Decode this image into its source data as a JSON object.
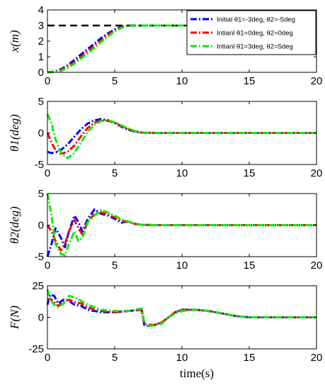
{
  "chart_data": [
    {
      "type": "line",
      "ylabel": "x(m)",
      "xlabel": "",
      "xlim": [
        0,
        20
      ],
      "ylim": [
        0,
        4
      ],
      "xticks": [
        "0",
        "5",
        "10",
        "15",
        "20"
      ],
      "yticks": [
        "0",
        "1",
        "2",
        "3",
        "4"
      ],
      "grid": false,
      "legend": "top-right",
      "reference_line": {
        "y": 3,
        "color": "#000000",
        "style": "dashed"
      },
      "series": [
        {
          "name": "Initial θ1=-3deg, θ2=-5deg",
          "color": "#0000ff",
          "style": "dashdot",
          "x": [
            0,
            0.5,
            1,
            1.5,
            2,
            2.5,
            3,
            3.5,
            4,
            4.5,
            5,
            5.5,
            6,
            7,
            8,
            9,
            10,
            12,
            15,
            18,
            20
          ],
          "y": [
            0,
            0.05,
            0.2,
            0.45,
            0.8,
            1.15,
            1.5,
            1.85,
            2.2,
            2.5,
            2.75,
            2.92,
            3.0,
            3.0,
            3.0,
            3.0,
            3.0,
            3.0,
            3.0,
            3.0,
            3.0
          ]
        },
        {
          "name": "Intianl θ1=0deg, θ2=0deg",
          "color": "#ff0000",
          "style": "dashdot",
          "x": [
            0,
            0.5,
            1,
            1.5,
            2,
            2.5,
            3,
            3.5,
            4,
            4.5,
            5,
            5.5,
            6,
            7,
            8,
            9,
            10,
            12,
            15,
            18,
            20
          ],
          "y": [
            0,
            0.03,
            0.15,
            0.35,
            0.65,
            1.0,
            1.35,
            1.7,
            2.05,
            2.4,
            2.68,
            2.88,
            2.98,
            3.0,
            3.0,
            3.0,
            3.0,
            3.0,
            3.0,
            3.0,
            3.0
          ]
        },
        {
          "name": "Intianl θ1=3deg, θ2=5deg",
          "color": "#00ee00",
          "style": "dashdot",
          "x": [
            0,
            0.5,
            1,
            1.5,
            2,
            2.5,
            3,
            3.5,
            4,
            4.5,
            5,
            5.5,
            6,
            7,
            8,
            9,
            10,
            12,
            15,
            18,
            20
          ],
          "y": [
            0,
            0.02,
            0.1,
            0.28,
            0.55,
            0.88,
            1.22,
            1.58,
            1.95,
            2.3,
            2.62,
            2.85,
            2.97,
            3.0,
            3.0,
            3.0,
            3.0,
            3.0,
            3.0,
            3.0,
            3.0
          ]
        }
      ]
    },
    {
      "type": "line",
      "ylabel": "θ1(deg)",
      "xlabel": "",
      "xlim": [
        0,
        20
      ],
      "ylim": [
        -5,
        5
      ],
      "xticks": [
        "0",
        "5",
        "10",
        "15",
        "20"
      ],
      "yticks": [
        "-5",
        "0",
        "5"
      ],
      "grid": false,
      "series": [
        {
          "name": "Initial θ1=-3deg, θ2=-5deg",
          "color": "#0000ff",
          "style": "dashdot",
          "x": [
            0,
            0.3,
            0.6,
            1,
            1.5,
            2,
            2.5,
            3,
            3.5,
            4,
            4.5,
            5,
            5.5,
            6,
            6.5,
            7,
            8,
            9,
            10,
            12,
            15,
            18,
            20
          ],
          "y": [
            -3,
            -3.2,
            -3.1,
            -2.7,
            -1.8,
            -0.6,
            0.6,
            1.5,
            2.0,
            2.2,
            2.0,
            1.6,
            1.0,
            0.5,
            0.2,
            0.05,
            0,
            0,
            0,
            0,
            0,
            0,
            0
          ]
        },
        {
          "name": "Intianl θ1=0deg, θ2=0deg",
          "color": "#ff0000",
          "style": "dashdot",
          "x": [
            0,
            0.3,
            0.6,
            1,
            1.5,
            2,
            2.5,
            3,
            3.5,
            4,
            4.5,
            5,
            5.5,
            6,
            6.5,
            7,
            8,
            9,
            10,
            12,
            15,
            18,
            20
          ],
          "y": [
            0,
            -1.5,
            -2.7,
            -3.3,
            -3.0,
            -2.0,
            -0.5,
            0.8,
            1.6,
            2.0,
            1.9,
            1.6,
            1.1,
            0.6,
            0.25,
            0.05,
            0,
            0,
            0,
            0,
            0,
            0,
            0
          ]
        },
        {
          "name": "Intianl θ1=3deg, θ2=5deg",
          "color": "#00ee00",
          "style": "dashdot",
          "x": [
            0,
            0.3,
            0.6,
            1,
            1.5,
            2,
            2.5,
            3,
            3.5,
            4,
            4.5,
            5,
            5.5,
            6,
            6.5,
            7,
            8,
            9,
            10,
            12,
            15,
            18,
            20
          ],
          "y": [
            3,
            1.5,
            -1.0,
            -3.2,
            -4.0,
            -3.2,
            -1.5,
            0.2,
            1.3,
            1.9,
            2.0,
            1.7,
            1.2,
            0.7,
            0.3,
            0.08,
            0,
            0,
            0,
            0,
            0,
            0,
            0
          ]
        }
      ]
    },
    {
      "type": "line",
      "ylabel": "θ2(deg)",
      "xlabel": "",
      "xlim": [
        0,
        20
      ],
      "ylim": [
        -5,
        5
      ],
      "xticks": [
        "0",
        "5",
        "10",
        "15",
        "20"
      ],
      "yticks": [
        "-5",
        "0",
        "5"
      ],
      "grid": false,
      "series": [
        {
          "name": "Initial θ1=-3deg, θ2=-5deg",
          "color": "#0000ff",
          "style": "dashdot",
          "x": [
            0,
            0.3,
            0.6,
            1,
            1.3,
            1.6,
            2,
            2.3,
            2.6,
            3,
            3.5,
            4,
            4.5,
            5,
            5.5,
            6,
            6.5,
            7,
            8,
            9,
            10,
            12,
            15,
            18,
            20
          ],
          "y": [
            -5,
            -3.0,
            -0.5,
            -2.0,
            -3.5,
            -1.0,
            1.5,
            0.5,
            -1.0,
            1.0,
            2.5,
            1.8,
            1.5,
            1.0,
            0.4,
            0.6,
            0.2,
            0.05,
            0,
            0,
            0,
            0,
            0,
            0,
            0
          ]
        },
        {
          "name": "Intianl θ1=0deg, θ2=0deg",
          "color": "#ff0000",
          "style": "dashdot",
          "x": [
            0,
            0.3,
            0.6,
            1,
            1.3,
            1.6,
            2,
            2.3,
            2.6,
            3,
            3.5,
            4,
            4.5,
            5,
            5.5,
            6,
            6.5,
            7,
            8,
            9,
            10,
            12,
            15,
            18,
            20
          ],
          "y": [
            0,
            -1.0,
            -2.5,
            -4.0,
            -3.0,
            -1.0,
            0.8,
            -0.5,
            -1.5,
            0.5,
            1.8,
            2.0,
            1.7,
            1.2,
            0.7,
            0.5,
            0.2,
            0.05,
            0,
            0,
            0,
            0,
            0,
            0,
            0
          ]
        },
        {
          "name": "Intianl θ1=3deg, θ2=5deg",
          "color": "#00ee00",
          "style": "dashdot",
          "x": [
            0,
            0.3,
            0.6,
            1,
            1.3,
            1.6,
            2,
            2.3,
            2.6,
            3,
            3.5,
            4,
            4.5,
            5,
            5.5,
            6,
            6.5,
            7,
            8,
            9,
            10,
            12,
            15,
            18,
            20
          ],
          "y": [
            5,
            1.5,
            -3.0,
            -4.5,
            -4.8,
            -3.0,
            -1.0,
            -2.5,
            -2.0,
            0.5,
            1.5,
            2.4,
            2.0,
            1.5,
            0.9,
            0.6,
            0.25,
            0.08,
            0,
            0,
            0,
            0,
            0,
            0,
            0
          ]
        }
      ]
    },
    {
      "type": "line",
      "ylabel": "F(N)",
      "xlabel": "time(s)",
      "xlim": [
        0,
        20
      ],
      "ylim": [
        -25,
        25
      ],
      "xticks": [
        "0",
        "5",
        "10",
        "15",
        "20"
      ],
      "yticks": [
        "-25",
        "0",
        "25"
      ],
      "grid": false,
      "series": [
        {
          "name": "Initial θ1=-3deg, θ2=-5deg",
          "color": "#0000ff",
          "style": "dashdot",
          "x": [
            0,
            0.2,
            0.5,
            0.8,
            1.2,
            1.6,
            2,
            2.5,
            3,
            3.5,
            4,
            5,
            6,
            7,
            7.2,
            7.5,
            8,
            8.5,
            9,
            9.5,
            10,
            11,
            12,
            13,
            14,
            15,
            16,
            18,
            20
          ],
          "y": [
            10,
            18,
            17,
            11,
            14,
            13,
            10,
            9,
            6,
            5,
            4,
            4,
            5,
            6,
            -6,
            -7,
            -6,
            -4,
            0,
            4,
            6,
            6,
            5,
            3,
            1,
            0,
            0,
            0,
            0
          ]
        },
        {
          "name": "Intianl θ1=0deg, θ2=0deg",
          "color": "#ff0000",
          "style": "dashdot",
          "x": [
            0,
            0.2,
            0.5,
            0.8,
            1.2,
            1.6,
            2,
            2.5,
            3,
            3.5,
            4,
            5,
            6,
            7,
            7.2,
            7.5,
            8,
            8.5,
            9,
            9.5,
            10,
            11,
            12,
            13,
            14,
            15,
            16,
            18,
            20
          ],
          "y": [
            14,
            15,
            12,
            9,
            12,
            14,
            12,
            11,
            8,
            6,
            5,
            4,
            5,
            6,
            -5,
            -6,
            -6,
            -4,
            0,
            4,
            6,
            6,
            5,
            3,
            1,
            0,
            0,
            0,
            0
          ]
        },
        {
          "name": "Intianl θ1=3deg, θ2=5deg",
          "color": "#00ee00",
          "style": "dashdot",
          "x": [
            0,
            0.2,
            0.5,
            0.8,
            1.2,
            1.6,
            2,
            2.5,
            3,
            3.5,
            4,
            5,
            6,
            7,
            7.2,
            7.5,
            8,
            8.5,
            9,
            9.5,
            10,
            11,
            12,
            13,
            14,
            15,
            16,
            18,
            20
          ],
          "y": [
            22,
            14,
            10,
            8,
            11,
            17,
            16,
            13,
            10,
            8,
            6,
            5,
            5,
            7,
            -4,
            -7,
            -6,
            -5,
            0,
            3,
            5,
            6,
            5,
            3,
            1,
            0,
            0,
            0,
            0
          ]
        }
      ]
    }
  ]
}
